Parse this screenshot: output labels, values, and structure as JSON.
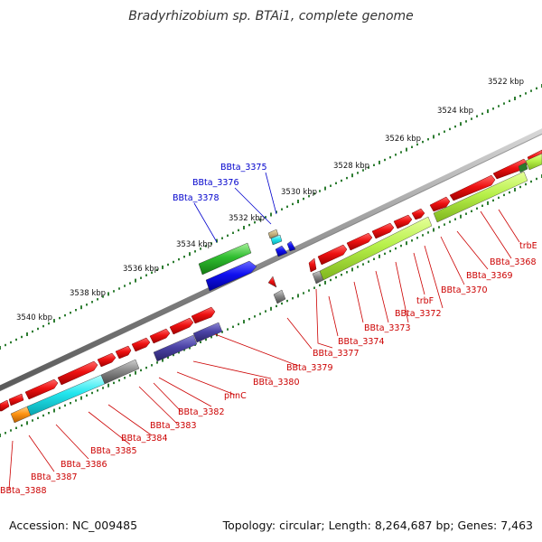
{
  "title": "Bradyrhizobium sp. BTAi1, complete genome",
  "footer": {
    "accession": "Accession: NC_009485",
    "topology": "Topology: circular; Length: 8,264,687 bp; Genes: 7,463"
  },
  "colors": {
    "forward_gene": "#e8151a",
    "reverse_gene": "#e8151a",
    "backbone": "#8a8a8a",
    "tick": "#2e7d32",
    "label_red": "#cc0000",
    "label_blue": "#0000cc"
  },
  "scale_labels": [
    "3522 kbp",
    "3524 kbp",
    "3526 kbp",
    "3528 kbp",
    "3530 kbp",
    "3532 kbp",
    "3534 kbp",
    "3536 kbp",
    "3538 kbp",
    "3540 kbp"
  ],
  "top_labels": [
    "BBta_3375",
    "BBta_3376",
    "BBta_3378"
  ],
  "bottom_labels": [
    "trbE",
    "BBta_3368",
    "BBta_3369",
    "BBta_3370",
    "BBta_3372",
    "trbF",
    "BBta_3373",
    "BBta_3374",
    "BBta_3377",
    "BBta_3379",
    "BBta_3380",
    "phnC",
    "BBta_3382",
    "BBta_3383",
    "BBta_3384",
    "BBta_3385",
    "BBta_3386",
    "BBta_3387",
    "BBta_3388"
  ]
}
